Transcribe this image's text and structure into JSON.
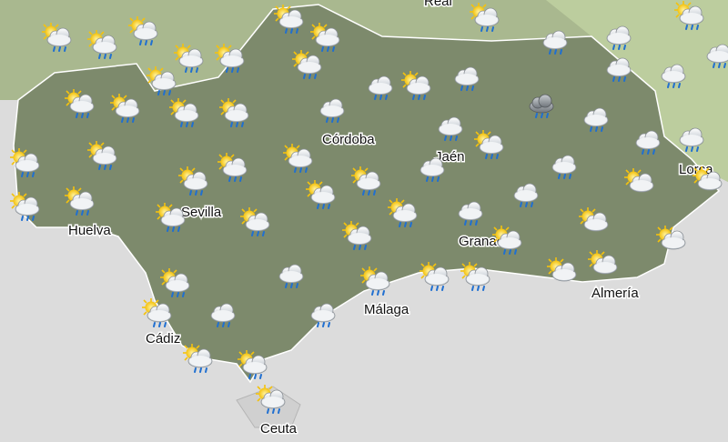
{
  "map": {
    "cities": [
      {
        "name": "Real"
      },
      {
        "name": "Córdoba"
      },
      {
        "name": "Jaén"
      },
      {
        "name": "Sevilla"
      },
      {
        "name": "Huelva"
      },
      {
        "name": "Granada"
      },
      {
        "name": "Lorca"
      },
      {
        "name": "Almería"
      },
      {
        "name": "Málaga"
      },
      {
        "name": "Cádiz"
      },
      {
        "name": "Ceuta"
      }
    ]
  }
}
